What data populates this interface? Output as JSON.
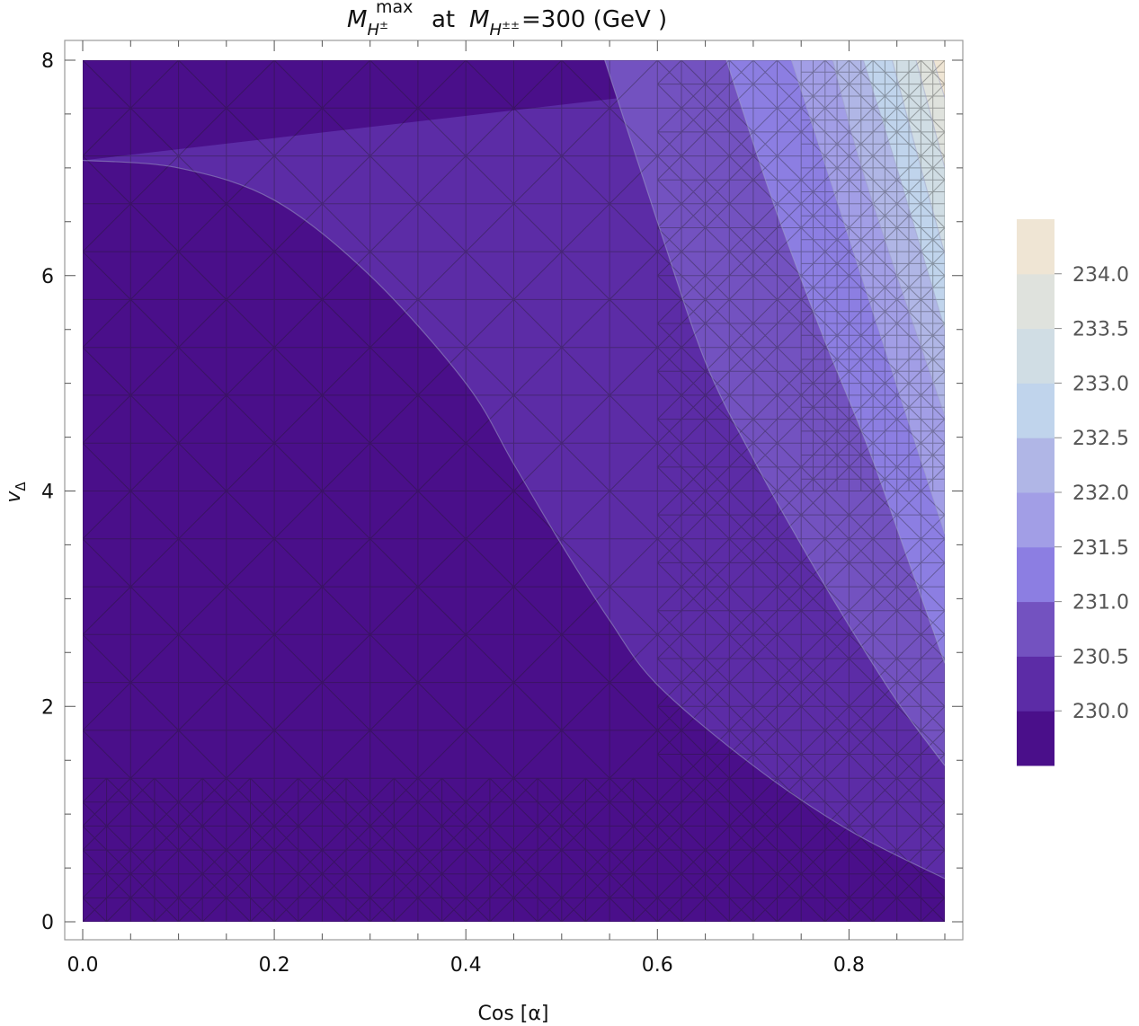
{
  "chart_data": {
    "type": "contour",
    "title": {
      "m": "M",
      "sub_main": "H",
      "sub_sup": "±",
      "sup": "max",
      "at": "at",
      "m2": "M",
      "sub2_main": "H",
      "sub2_sup": "±±",
      "rest": "=300 (GeV )"
    },
    "xlabel": "Cos [α]",
    "ylabel": {
      "base": "v",
      "sub": "Δ"
    },
    "xlim": [
      0.0,
      0.9
    ],
    "ylim": [
      0,
      8
    ],
    "xticks": [
      {
        "value": 0.0,
        "label": "0.0"
      },
      {
        "value": 0.2,
        "label": "0.2"
      },
      {
        "value": 0.4,
        "label": "0.4"
      },
      {
        "value": 0.6,
        "label": "0.6"
      },
      {
        "value": 0.8,
        "label": "0.8"
      }
    ],
    "yticks": [
      {
        "value": 0,
        "label": "0"
      },
      {
        "value": 2,
        "label": "2"
      },
      {
        "value": 4,
        "label": "4"
      },
      {
        "value": 6,
        "label": "6"
      },
      {
        "value": 8,
        "label": "8"
      }
    ],
    "levels": [
      {
        "lower": null,
        "upper": 230.0,
        "color": "#4a0f8a"
      },
      {
        "lower": 230.0,
        "upper": 230.5,
        "color": "#5c2ca6"
      },
      {
        "lower": 230.5,
        "upper": 231.0,
        "color": "#7352c0"
      },
      {
        "lower": 231.0,
        "upper": 231.5,
        "color": "#8c7ee2"
      },
      {
        "lower": 231.5,
        "upper": 232.0,
        "color": "#a29ee6"
      },
      {
        "lower": 232.0,
        "upper": 232.5,
        "color": "#b0b6e6"
      },
      {
        "lower": 232.5,
        "upper": 233.0,
        "color": "#c0d4ec"
      },
      {
        "lower": 233.0,
        "upper": 233.5,
        "color": "#d0dde4"
      },
      {
        "lower": 233.5,
        "upper": 234.0,
        "color": "#dfe2dd"
      },
      {
        "lower": 234.0,
        "upper": null,
        "color": "#efe5d4"
      }
    ],
    "legend_ticks": [
      "230.0",
      "230.5",
      "231.0",
      "231.5",
      "232.0",
      "232.5",
      "233.0",
      "233.5",
      "234.0"
    ],
    "boundaries": [
      {
        "level": 230.0,
        "points": [
          [
            0.0,
            7.07
          ],
          [
            0.1,
            7.0
          ],
          [
            0.2,
            6.7
          ],
          [
            0.3,
            6.0
          ],
          [
            0.4,
            5.0
          ],
          [
            0.45,
            4.25
          ],
          [
            0.5,
            3.5
          ],
          [
            0.55,
            2.8
          ],
          [
            0.6,
            2.2
          ],
          [
            0.7,
            1.45
          ],
          [
            0.8,
            0.85
          ],
          [
            0.9,
            0.4
          ]
        ]
      },
      {
        "level": 230.5,
        "points": [
          [
            0.545,
            8.0
          ],
          [
            0.6,
            6.5
          ],
          [
            0.65,
            5.2
          ],
          [
            0.7,
            4.3
          ],
          [
            0.75,
            3.5
          ],
          [
            0.8,
            2.75
          ],
          [
            0.85,
            2.05
          ],
          [
            0.9,
            1.45
          ]
        ]
      },
      {
        "level": 231.0,
        "points": [
          [
            0.672,
            8.0
          ],
          [
            0.72,
            6.7
          ],
          [
            0.77,
            5.5
          ],
          [
            0.82,
            4.4
          ],
          [
            0.86,
            3.4
          ],
          [
            0.9,
            2.4
          ]
        ]
      },
      {
        "level": 231.5,
        "points": [
          [
            0.74,
            8.0
          ],
          [
            0.78,
            6.9
          ],
          [
            0.82,
            5.8
          ],
          [
            0.86,
            4.7
          ],
          [
            0.9,
            3.6
          ]
        ]
      },
      {
        "level": 232.0,
        "points": [
          [
            0.783,
            8.0
          ],
          [
            0.81,
            7.1
          ],
          [
            0.85,
            6.0
          ],
          [
            0.9,
            4.7
          ]
        ]
      },
      {
        "level": 232.5,
        "points": [
          [
            0.815,
            8.0
          ],
          [
            0.85,
            7.0
          ],
          [
            0.9,
            5.5
          ]
        ]
      },
      {
        "level": 233.0,
        "points": [
          [
            0.845,
            8.0
          ],
          [
            0.875,
            7.0
          ],
          [
            0.9,
            6.2
          ]
        ]
      },
      {
        "level": 233.5,
        "points": [
          [
            0.87,
            8.0
          ],
          [
            0.9,
            7.0
          ]
        ]
      },
      {
        "level": 234.0,
        "points": [
          [
            0.888,
            8.0
          ],
          [
            0.9,
            7.65
          ]
        ]
      }
    ],
    "mesh_color": "#1c1c1c",
    "legend_position": "right",
    "grid": false
  }
}
